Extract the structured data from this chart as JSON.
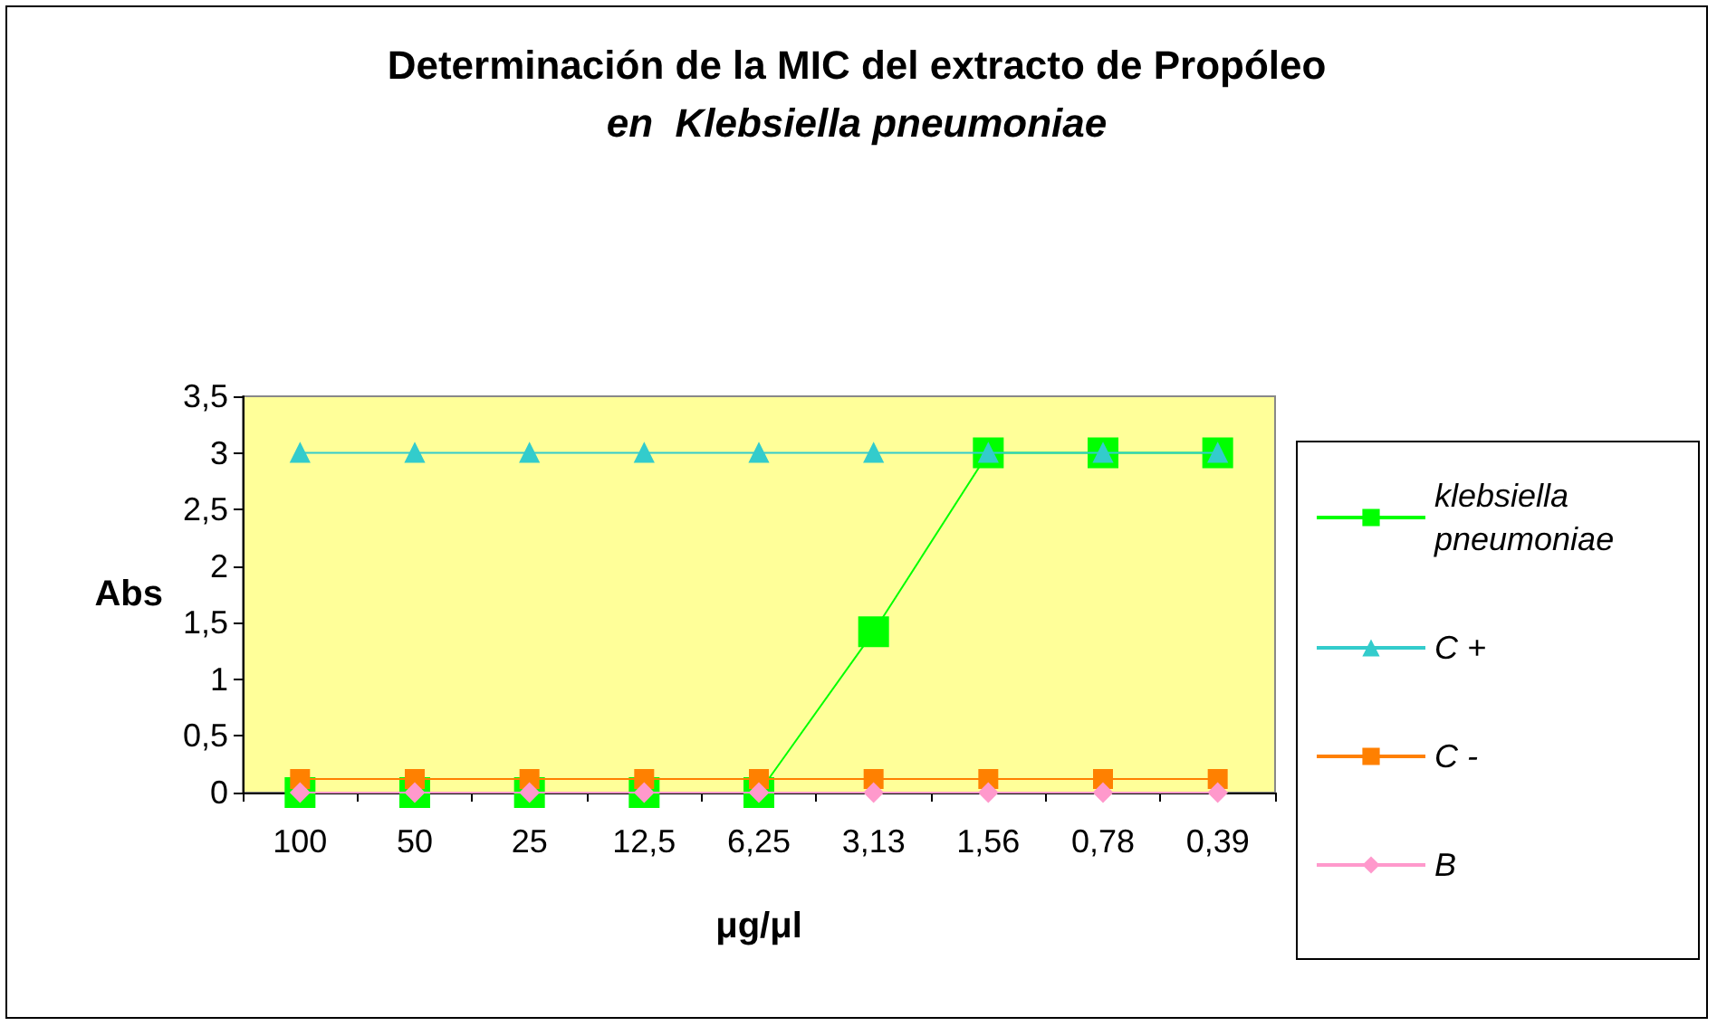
{
  "chart_data": {
    "type": "line",
    "title": "Determinación de la MIC del extracto de Propóleo",
    "subtitle": "en  Klebsiella pneumoniae",
    "xlabel": "μg/μl",
    "ylabel": "Abs",
    "categories": [
      "100",
      "50",
      "25",
      "12,5",
      "6,25",
      "3,13",
      "1,56",
      "0,78",
      "0,39"
    ],
    "ylim": [
      0,
      3.5
    ],
    "yticks": [
      {
        "value": 0,
        "label": "0"
      },
      {
        "value": 0.5,
        "label": "0,5"
      },
      {
        "value": 1,
        "label": "1"
      },
      {
        "value": 1.5,
        "label": "1,5"
      },
      {
        "value": 2,
        "label": "2"
      },
      {
        "value": 2.5,
        "label": "2,5"
      },
      {
        "value": 3,
        "label": "3"
      },
      {
        "value": 3.5,
        "label": "3,5"
      }
    ],
    "grid": false,
    "legend": "right",
    "line_style": "solid",
    "series": [
      {
        "name": "klebsiella pneumoniae",
        "color": "#00ff00",
        "marker": "square",
        "values": [
          0,
          0,
          0,
          0,
          0,
          1.42,
          3,
          3,
          3
        ]
      },
      {
        "name": "C +",
        "color": "#33cccc",
        "marker": "triangle",
        "values": [
          3,
          3,
          3,
          3,
          3,
          3,
          3,
          3,
          3
        ]
      },
      {
        "name": "C -",
        "color": "#ff8000",
        "marker": "square",
        "values": [
          0.12,
          0.12,
          0.12,
          0.12,
          0.12,
          0.12,
          0.12,
          0.12,
          0.12
        ]
      },
      {
        "name": "B",
        "color": "#ff99cc",
        "marker": "diamond",
        "values": [
          0,
          0,
          0,
          0,
          0,
          0,
          0,
          0,
          0
        ]
      }
    ]
  }
}
